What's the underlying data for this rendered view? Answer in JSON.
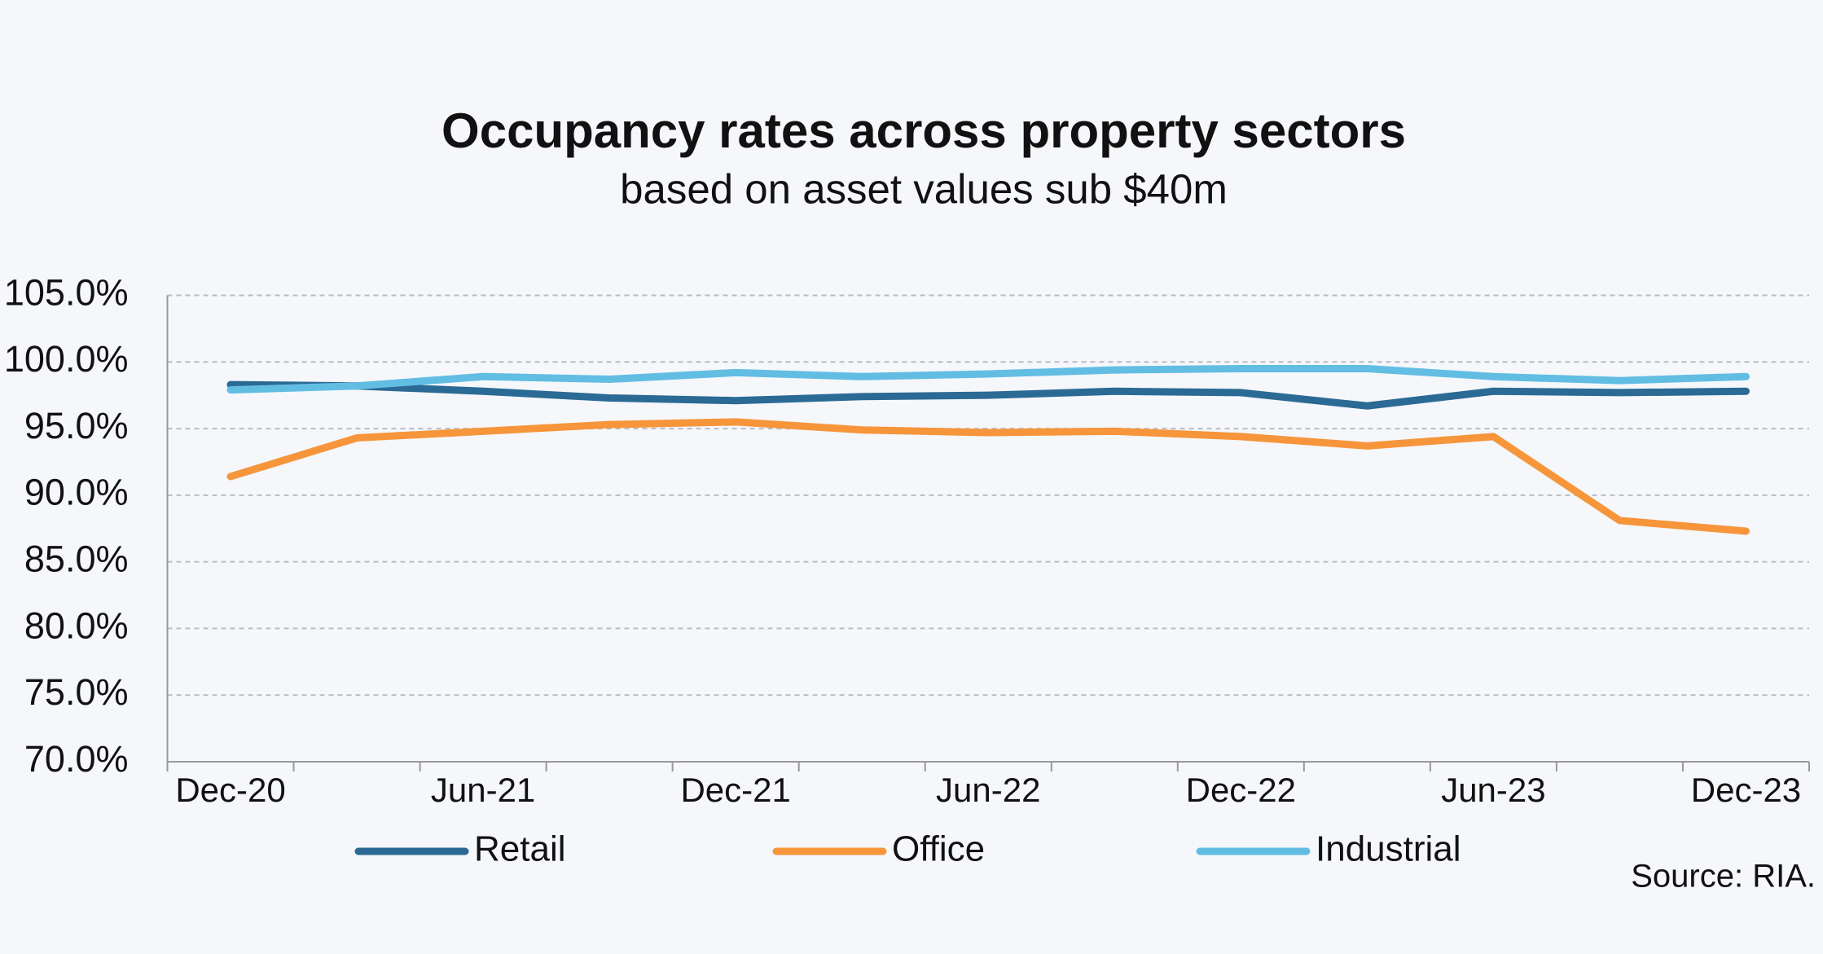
{
  "chart_data": {
    "type": "line",
    "title": "Occupancy rates across property sectors",
    "subtitle": "based on asset values sub $40m",
    "categories": [
      "Dec-20",
      null,
      "Jun-21",
      null,
      "Dec-21",
      null,
      "Jun-22",
      null,
      "Dec-22",
      null,
      "Jun-23",
      null,
      "Dec-23"
    ],
    "series": [
      {
        "name": "Retail",
        "color": "#2b6a94",
        "values": [
          98.3,
          98.2,
          97.8,
          97.3,
          97.1,
          97.4,
          97.5,
          97.8,
          97.7,
          96.7,
          97.8,
          97.7,
          97.8
        ]
      },
      {
        "name": "Office",
        "color": "#f7953b",
        "values": [
          91.4,
          94.3,
          94.8,
          95.3,
          95.5,
          94.9,
          94.7,
          94.8,
          94.4,
          93.7,
          94.4,
          88.1,
          87.3
        ]
      },
      {
        "name": "Industrial",
        "color": "#62bde3",
        "values": [
          97.9,
          98.2,
          98.9,
          98.7,
          99.2,
          98.9,
          99.1,
          99.4,
          99.5,
          99.5,
          98.9,
          98.6,
          98.9
        ]
      }
    ],
    "ylim": [
      70,
      105
    ],
    "yticks": [
      {
        "value": 70,
        "label": "70.0%"
      },
      {
        "value": 75,
        "label": "75.0%"
      },
      {
        "value": 80,
        "label": "80.0%"
      },
      {
        "value": 85,
        "label": "85.0%"
      },
      {
        "value": 90,
        "label": "90.0%"
      },
      {
        "value": 95,
        "label": "95.0%"
      },
      {
        "value": 100,
        "label": "100.0%"
      },
      {
        "value": 105,
        "label": "105.0%"
      }
    ],
    "grid": true,
    "legend": "bottom",
    "source": "Source: RIA."
  }
}
